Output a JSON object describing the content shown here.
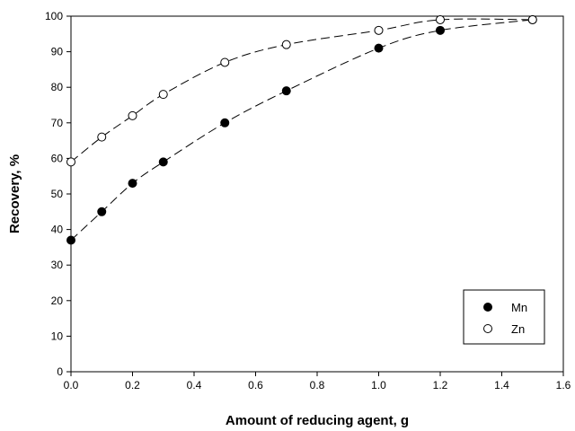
{
  "chart_data": {
    "type": "scatter",
    "title": "",
    "xlabel": "Amount of reducing agent, g",
    "ylabel": "Recovery, %",
    "xlim": [
      0,
      1.6
    ],
    "ylim": [
      0,
      100
    ],
    "xticks": [
      "0.0",
      "0.2",
      "0.4",
      "0.6",
      "0.8",
      "1.0",
      "1.2",
      "1.4",
      "1.6"
    ],
    "yticks": [
      "0",
      "10",
      "20",
      "30",
      "40",
      "50",
      "60",
      "70",
      "80",
      "90",
      "100"
    ],
    "grid": false,
    "legend_position": "bottom-right",
    "series": [
      {
        "name": "Mn",
        "marker": "filled-circle",
        "color": "#000000",
        "line_style": "dashed",
        "x": [
          0.0,
          0.1,
          0.2,
          0.3,
          0.5,
          0.7,
          1.0,
          1.2,
          1.5
        ],
        "y": [
          37,
          45,
          53,
          59,
          70,
          79,
          91,
          96,
          99
        ]
      },
      {
        "name": "Zn",
        "marker": "open-circle",
        "color": "#000000",
        "line_style": "dashed",
        "x": [
          0.0,
          0.1,
          0.2,
          0.3,
          0.5,
          0.7,
          1.0,
          1.2,
          1.5
        ],
        "y": [
          59,
          66,
          72,
          78,
          87,
          92,
          96,
          99,
          99
        ]
      }
    ]
  }
}
